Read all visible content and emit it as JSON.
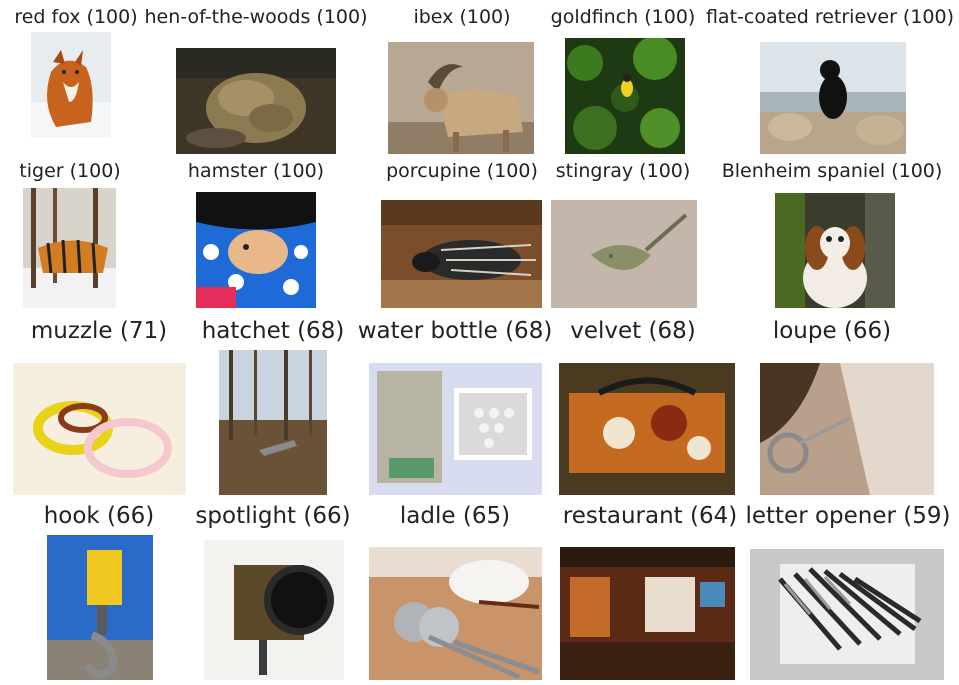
{
  "rows": [
    {
      "items": [
        {
          "label": "red fox (100)",
          "scene": "red-fox"
        },
        {
          "label": "hen-of-the-woods (100)",
          "scene": "hen-of-the-woods"
        },
        {
          "label": "ibex (100)",
          "scene": "ibex"
        },
        {
          "label": "goldfinch (100)",
          "scene": "goldfinch"
        },
        {
          "label": "flat-coated retriever (100)",
          "scene": "flat-coated-retriever"
        }
      ]
    },
    {
      "items": [
        {
          "label": "tiger (100)",
          "scene": "tiger"
        },
        {
          "label": "hamster (100)",
          "scene": "hamster"
        },
        {
          "label": "porcupine (100)",
          "scene": "porcupine"
        },
        {
          "label": "stingray (100)",
          "scene": "stingray"
        },
        {
          "label": "Blenheim spaniel (100)",
          "scene": "blenheim-spaniel"
        }
      ]
    },
    {
      "items": [
        {
          "label": "muzzle (71)",
          "scene": "muzzle"
        },
        {
          "label": "hatchet (68)",
          "scene": "hatchet"
        },
        {
          "label": "water bottle (68)",
          "scene": "water-bottle"
        },
        {
          "label": "velvet (68)",
          "scene": "velvet"
        },
        {
          "label": "loupe (66)",
          "scene": "loupe"
        }
      ]
    },
    {
      "items": [
        {
          "label": "hook (66)",
          "scene": "hook"
        },
        {
          "label": "spotlight (66)",
          "scene": "spotlight"
        },
        {
          "label": "ladle (65)",
          "scene": "ladle"
        },
        {
          "label": "restaurant (64)",
          "scene": "restaurant"
        },
        {
          "label": "letter opener (59)",
          "scene": "letter-opener"
        }
      ]
    }
  ]
}
